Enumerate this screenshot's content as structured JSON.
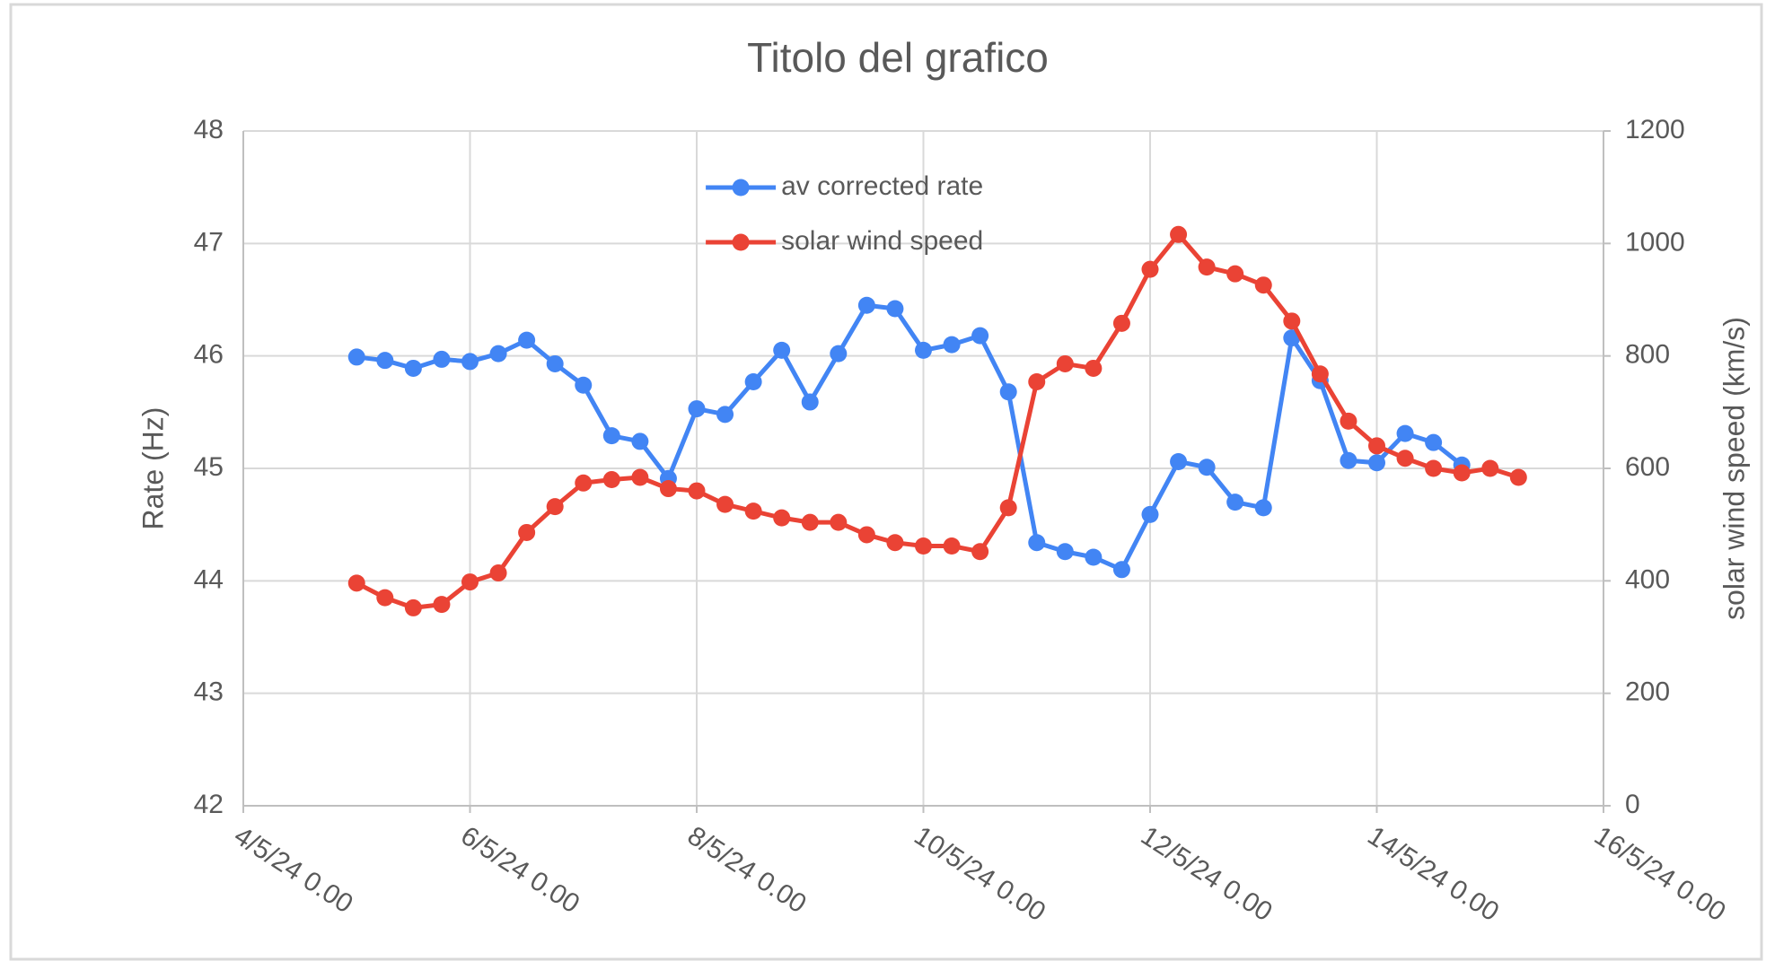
{
  "chart_data": {
    "type": "line",
    "title": "Titolo del grafico",
    "ylabel": "Rate (Hz)",
    "y2label": "solar wind speed (km/s)",
    "x": [
      "5/5/24 0.00",
      "5/5/24 6.00",
      "5/5/24 12.00",
      "5/5/24 18.00",
      "6/5/24 0.00",
      "6/5/24 6.00",
      "6/5/24 12.00",
      "6/5/24 18.00",
      "7/5/24 0.00",
      "7/5/24 6.00",
      "7/5/24 12.00",
      "7/5/24 18.00",
      "8/5/24 0.00",
      "8/5/24 6.00",
      "8/5/24 12.00",
      "8/5/24 18.00",
      "9/5/24 0.00",
      "9/5/24 6.00",
      "9/5/24 12.00",
      "9/5/24 18.00",
      "10/5/24 0.00",
      "10/5/24 6.00",
      "10/5/24 12.00",
      "10/5/24 18.00",
      "11/5/24 0.00",
      "11/5/24 6.00",
      "11/5/24 12.00",
      "11/5/24 18.00",
      "12/5/24 0.00",
      "12/5/24 6.00",
      "12/5/24 12.00",
      "12/5/24 18.00",
      "13/5/24 0.00",
      "13/5/24 6.00",
      "13/5/24 12.00",
      "13/5/24 18.00",
      "14/5/24 0.00",
      "14/5/24 6.00",
      "14/5/24 12.00",
      "14/5/24 18.00",
      "15/5/24 0.00",
      "15/5/24 6.00"
    ],
    "series": [
      {
        "name": "av corrected rate",
        "color": "#4285f4",
        "axis": "y",
        "values": [
          45.99,
          45.96,
          45.89,
          45.97,
          45.95,
          46.02,
          46.14,
          45.93,
          45.74,
          45.29,
          45.24,
          44.91,
          45.53,
          45.48,
          45.77,
          46.05,
          45.59,
          46.02,
          46.45,
          46.42,
          46.05,
          46.1,
          46.18,
          45.68,
          44.34,
          44.26,
          44.21,
          44.1,
          44.59,
          45.06,
          45.01,
          44.7,
          44.65,
          46.16,
          45.78,
          45.07,
          45.05,
          45.31,
          45.23,
          45.03,
          null,
          null
        ]
      },
      {
        "name": "solar wind speed",
        "color": "#ea4335",
        "axis": "y2",
        "values": [
          396,
          370,
          352,
          358,
          398,
          414,
          486,
          532,
          574,
          580,
          584,
          564,
          560,
          536,
          524,
          512,
          504,
          504,
          482,
          468,
          462,
          462,
          452,
          530,
          754,
          786,
          778,
          858,
          954,
          1016,
          958,
          946,
          926,
          862,
          768,
          684,
          640,
          618,
          600,
          592,
          600,
          584
        ]
      }
    ],
    "xlim": [
      "4/5/24 0.00",
      "16/5/24 0.00"
    ],
    "xticks": [
      "4/5/24 0.00",
      "6/5/24 0.00",
      "8/5/24 0.00",
      "10/5/24 0.00",
      "12/5/24 0.00",
      "14/5/24 0.00",
      "16/5/24 0.00"
    ],
    "ylim": [
      42,
      48
    ],
    "yticks": [
      42,
      43,
      44,
      45,
      46,
      47,
      48
    ],
    "y2lim": [
      0,
      1200
    ],
    "y2ticks": [
      0,
      200,
      400,
      600,
      800,
      1000,
      1200
    ],
    "grid": true,
    "legend": "upper center"
  }
}
